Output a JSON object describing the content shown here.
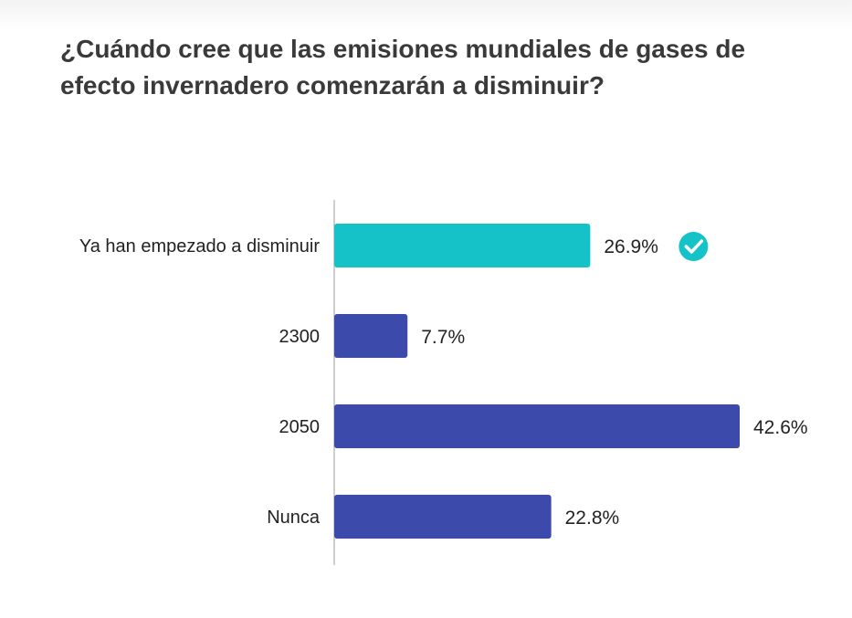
{
  "question": "¿Cuándo cree que las emisiones mundiales de gases de efecto invernadero comenzarán a disminuir?",
  "chart_data": {
    "type": "bar",
    "orientation": "horizontal",
    "title": "¿Cuándo cree que las emisiones mundiales de gases de efecto invernadero comenzarán a disminuir?",
    "categories": [
      "Ya han empezado a disminuir",
      "2300",
      "2050",
      "Nunca"
    ],
    "values": [
      26.9,
      7.7,
      42.6,
      22.8
    ],
    "value_labels": [
      "26.9%",
      "7.7%",
      "42.6%",
      "22.8%"
    ],
    "correct_index": 0,
    "correct_icon": "check-circle-icon",
    "xlim": [
      0,
      42.6
    ],
    "grid": false,
    "colors": {
      "correct_bar": "#14c2c7",
      "bar": "#3b4aab",
      "axis": "#bdbdbd",
      "label": "#222222",
      "title": "#3a3a3a"
    }
  }
}
